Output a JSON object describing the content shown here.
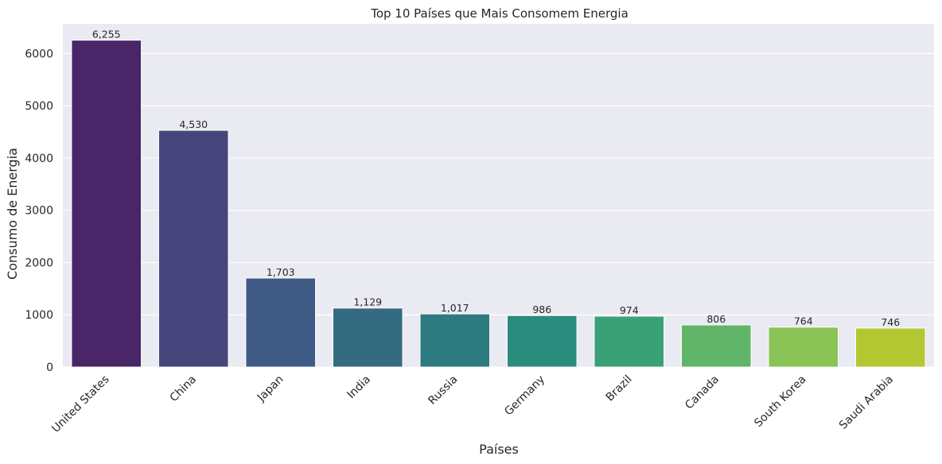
{
  "chart_data": {
    "type": "bar",
    "title": "Top 10 Países que Mais Consomem Energia",
    "xlabel": "Países",
    "ylabel": "Consumo de Energia",
    "categories": [
      "United States",
      "China",
      "Japan",
      "India",
      "Russia",
      "Germany",
      "Brazil",
      "Canada",
      "South Korea",
      "Saudi Arabia"
    ],
    "values": [
      6255,
      4530,
      1703,
      1129,
      1017,
      986,
      974,
      806,
      764,
      746
    ],
    "value_labels": [
      "6,255",
      "4,530",
      "1,703",
      "1,129",
      "1,017",
      "986",
      "974",
      "806",
      "764",
      "746"
    ],
    "yticks": [
      0,
      1000,
      2000,
      3000,
      4000,
      5000,
      6000
    ],
    "ylim": [
      0,
      6568
    ],
    "grid": true,
    "colors": [
      "#482667",
      "#46467d",
      "#3f5a84",
      "#356b80",
      "#2d7b81",
      "#2b8b7c",
      "#3aa076",
      "#60b569",
      "#8ac356",
      "#b2c732"
    ],
    "background": "#eaeaf2"
  }
}
